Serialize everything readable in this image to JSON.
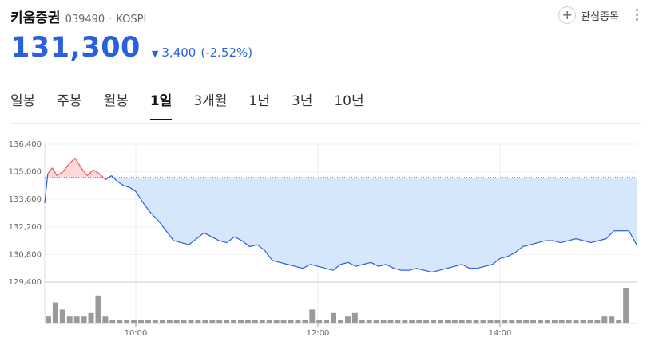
{
  "stock": {
    "name": "키움증권",
    "code": "039490",
    "market": "KOSPI",
    "price": "131,300",
    "change": "3,400",
    "change_pct": "(-2.52%)",
    "direction": "down",
    "color_down": "#2a5fe0",
    "color_up": "#e85a5a"
  },
  "actions": {
    "favorite_label": "관심종목"
  },
  "tabs": [
    {
      "label": "일봉",
      "active": false
    },
    {
      "label": "주봉",
      "active": false
    },
    {
      "label": "월봉",
      "active": false
    },
    {
      "label": "1일",
      "active": true
    },
    {
      "label": "3개월",
      "active": false
    },
    {
      "label": "1년",
      "active": false
    },
    {
      "label": "3년",
      "active": false
    },
    {
      "label": "10년",
      "active": false
    }
  ],
  "chart_data": {
    "type": "line",
    "title": "",
    "reference_price": 134700,
    "ylim": [
      129400,
      136400
    ],
    "yticks": [
      "136,400",
      "135,000",
      "133,600",
      "132,200",
      "130,800",
      "129,400"
    ],
    "ytick_values": [
      136400,
      135000,
      133600,
      132200,
      130800,
      129400
    ],
    "xlim": [
      "09:00",
      "15:30"
    ],
    "xticks": [
      "10:00",
      "12:00",
      "14:00"
    ],
    "series": [
      {
        "x": [
          "09:00",
          "09:02",
          "09:05",
          "09:08",
          "09:12",
          "09:16",
          "09:20",
          "09:24",
          "09:28",
          "09:32",
          "09:36",
          "09:40",
          "09:44",
          "09:48",
          "09:52",
          "09:56",
          "10:00",
          "10:05",
          "10:10",
          "10:15",
          "10:20",
          "10:25",
          "10:30",
          "10:35",
          "10:40",
          "10:45",
          "10:50",
          "10:55",
          "11:00",
          "11:05",
          "11:10",
          "11:15",
          "11:20",
          "11:25",
          "11:30",
          "11:35",
          "11:40",
          "11:45",
          "11:50",
          "11:55",
          "12:00",
          "12:05",
          "12:10",
          "12:15",
          "12:20",
          "12:25",
          "12:30",
          "12:35",
          "12:40",
          "12:45",
          "12:50",
          "12:55",
          "13:00",
          "13:05",
          "13:10",
          "13:15",
          "13:20",
          "13:25",
          "13:30",
          "13:35",
          "13:40",
          "13:45",
          "13:50",
          "13:55",
          "14:00",
          "14:05",
          "14:10",
          "14:15",
          "14:20",
          "14:25",
          "14:30",
          "14:35",
          "14:40",
          "14:45",
          "14:50",
          "14:55",
          "15:00",
          "15:05",
          "15:10",
          "15:15",
          "15:20",
          "15:25",
          "15:30"
        ],
        "y": [
          133400,
          134900,
          135200,
          134800,
          135000,
          135400,
          135700,
          135200,
          134800,
          135100,
          134900,
          134600,
          134800,
          134500,
          134300,
          134200,
          134000,
          133400,
          132900,
          132500,
          132000,
          131500,
          131400,
          131300,
          131600,
          131900,
          131700,
          131500,
          131400,
          131700,
          131500,
          131200,
          131300,
          131000,
          130500,
          130400,
          130300,
          130200,
          130100,
          130300,
          130200,
          130100,
          130000,
          130300,
          130400,
          130200,
          130300,
          130400,
          130200,
          130300,
          130100,
          130000,
          130000,
          130100,
          130000,
          129900,
          130000,
          130100,
          130200,
          130300,
          130100,
          130100,
          130200,
          130300,
          130600,
          130700,
          130900,
          131200,
          131300,
          131400,
          131500,
          131500,
          131400,
          131500,
          131600,
          131500,
          131400,
          131500,
          131600,
          132000,
          132000,
          132000,
          131300
        ]
      }
    ],
    "volume": [
      2,
      6,
      4,
      2,
      2,
      2,
      3,
      8,
      2,
      1,
      1,
      1,
      1,
      1,
      1,
      1,
      1,
      1,
      1,
      1,
      1,
      1,
      1,
      1,
      1,
      1,
      1,
      1,
      1,
      1,
      1,
      1,
      1,
      1,
      1,
      1,
      1,
      4,
      1,
      1,
      3,
      1,
      2,
      3,
      1,
      1,
      1,
      1,
      1,
      1,
      1,
      1,
      1,
      1,
      1,
      1,
      1,
      1,
      1,
      1,
      1,
      1,
      1,
      1,
      1,
      1,
      1,
      1,
      1,
      1,
      1,
      1,
      1,
      1,
      1,
      1,
      1,
      1,
      2,
      2,
      1,
      10,
      0
    ],
    "grid": true
  }
}
